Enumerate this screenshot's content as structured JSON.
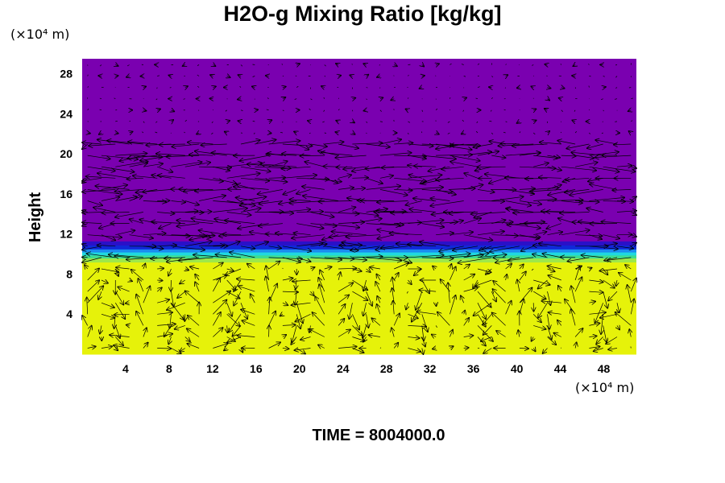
{
  "chart_data": {
    "type": "heatmap",
    "title": "H2O-g Mixing Ratio [kg/kg]",
    "ylabel": "Height",
    "xlabel": "",
    "x_unit": "(×10⁴ m)",
    "y_unit": "(×10⁴ m)",
    "time_label": "TIME = 8004000.0",
    "xlim": [
      0,
      51
    ],
    "ylim": [
      0,
      29.5
    ],
    "x_ticks": [
      "4",
      "8",
      "12",
      "16",
      "20",
      "24",
      "28",
      "32",
      "36",
      "40",
      "44",
      "48"
    ],
    "y_ticks": [
      "4",
      "8",
      "12",
      "16",
      "20",
      "24",
      "28"
    ],
    "x_tick_values": [
      4,
      8,
      12,
      16,
      20,
      24,
      28,
      32,
      36,
      40,
      44,
      48
    ],
    "y_tick_values": [
      4,
      8,
      12,
      16,
      20,
      24,
      28
    ],
    "field": {
      "lower_color": "#e6f20a",
      "upper_color": "#7a00b0",
      "interface_height": 10.6,
      "bands": [
        {
          "y0": 0,
          "y1": 9.2,
          "color": "#e6f20a"
        },
        {
          "y0": 9.2,
          "y1": 9.6,
          "color": "#9ee84a"
        },
        {
          "y0": 9.6,
          "y1": 9.9,
          "color": "#3ddc90"
        },
        {
          "y0": 9.9,
          "y1": 10.2,
          "color": "#20d8e0"
        },
        {
          "y0": 10.2,
          "y1": 10.5,
          "color": "#1a8cf0"
        },
        {
          "y0": 10.5,
          "y1": 10.9,
          "color": "#1028d8"
        },
        {
          "y0": 10.9,
          "y1": 11.3,
          "color": "#2a10c8"
        },
        {
          "y0": 11.3,
          "y1": 29.5,
          "color": "#7a00b0"
        }
      ]
    },
    "vector_field": {
      "color": "#000000",
      "description_rows": [
        {
          "y": 1,
          "cells_dx": [
            2.0,
            -2.0,
            2.0,
            3.0,
            -1.0,
            0.0,
            2.0,
            3.0,
            -2.0,
            -1.0,
            3.0,
            1.0,
            -2.0,
            2.0,
            3.0,
            -1.0,
            0.5,
            2.0,
            -2.0,
            1.0,
            2.0,
            3.0,
            -2.0,
            1.0,
            2.0
          ]
        }
      ]
    }
  }
}
